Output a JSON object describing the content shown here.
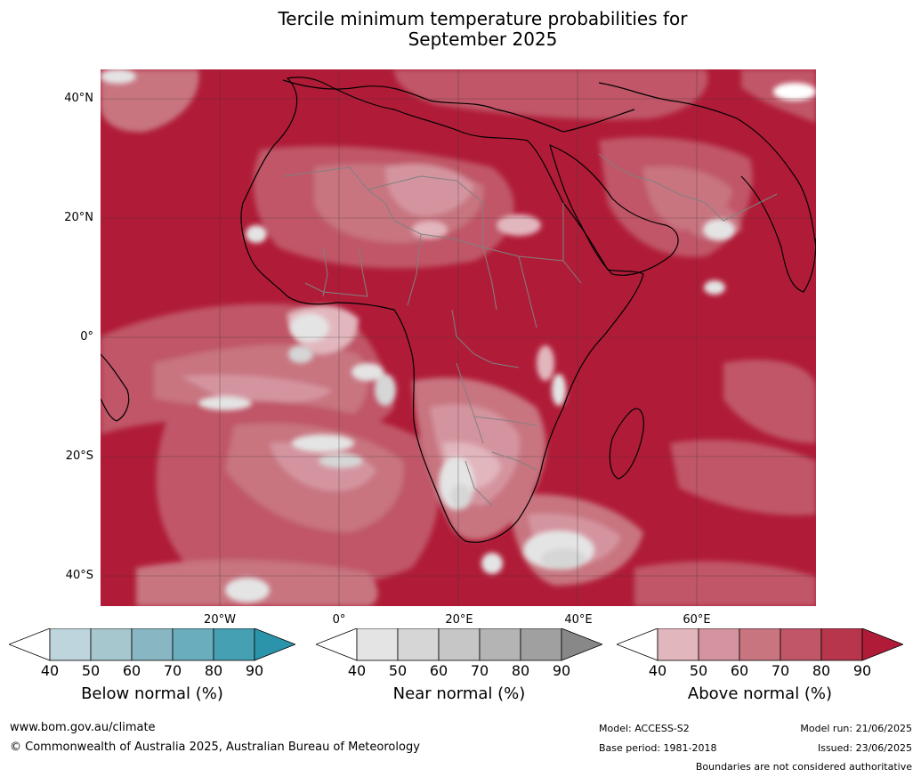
{
  "title_line1": "Tercile minimum temperature probabilities for",
  "title_line2": "September 2025",
  "map": {
    "latitude_labels": [
      "40°N",
      "20°N",
      "0°",
      "20°S",
      "40°S"
    ],
    "longitude_labels": [
      "20°W",
      "0°",
      "20°E",
      "40°E",
      "60°E"
    ],
    "dominant_category": "Above normal",
    "colors": {
      "land_border": "#000000",
      "country_border": "#808080",
      "gridline": "#333333"
    }
  },
  "colorbars": [
    {
      "title": "Below normal (%)",
      "ticks": [
        "40",
        "50",
        "60",
        "70",
        "80",
        "90"
      ],
      "colors": [
        "#ffffff",
        "#bfd5dd",
        "#a7c7cf",
        "#88b7c3",
        "#6aadbd",
        "#46a0b3",
        "#2b94ab"
      ]
    },
    {
      "title": "Near normal (%)",
      "ticks": [
        "40",
        "50",
        "60",
        "70",
        "80",
        "90"
      ],
      "colors": [
        "#ffffff",
        "#e4e4e4",
        "#d6d6d6",
        "#c6c6c6",
        "#b4b4b4",
        "#a0a0a0",
        "#888888"
      ]
    },
    {
      "title": "Above normal (%)",
      "ticks": [
        "40",
        "50",
        "60",
        "70",
        "80",
        "90"
      ],
      "colors": [
        "#ffffff",
        "#e2b6bd",
        "#d4949f",
        "#c87580",
        "#c05668",
        "#b8364c",
        "#b01c38"
      ]
    }
  ],
  "footer": {
    "website": "www.bom.gov.au/climate",
    "copyright": "© Commonwealth of Australia 2025, Australian Bureau of Meteorology",
    "model": "Model: ACCESS-S2",
    "base_period": "Base period: 1981-2018",
    "model_run": "Model run: 21/06/2025",
    "issued": "Issued: 23/06/2025",
    "disclaimer": "Boundaries are not considered authoritative"
  }
}
